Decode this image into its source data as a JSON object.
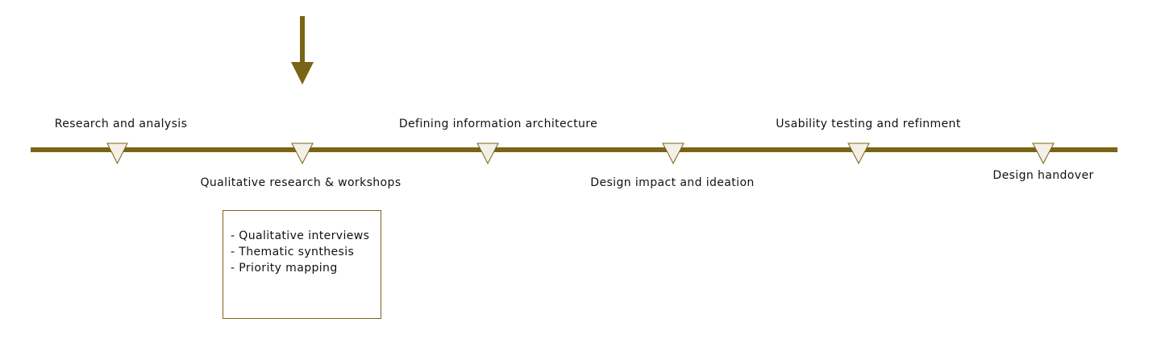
{
  "colors": {
    "accent": "#7a6417",
    "marker_fill": "#f5f0e6",
    "text": "#111111"
  },
  "timeline": {
    "milestones": [
      {
        "label": "Research and analysis"
      },
      {
        "label": "Qualitative research & workshops"
      },
      {
        "label": "Defining information architecture"
      },
      {
        "label": "Design impact and ideation"
      },
      {
        "label": "Usability testing and refinment"
      },
      {
        "label": "Design handover"
      }
    ],
    "current_index": 1
  },
  "detail": {
    "items": [
      "- Qualitative interviews",
      "- Thematic synthesis",
      "- Priority mapping"
    ]
  }
}
